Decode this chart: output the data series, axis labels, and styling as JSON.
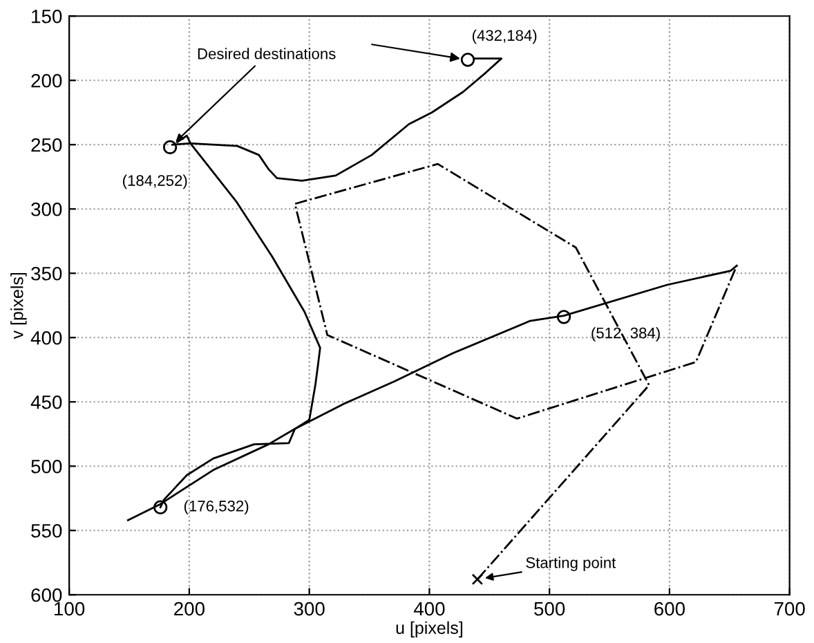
{
  "chart_data": {
    "type": "line",
    "xlabel": "u [pixels]",
    "ylabel": "v [pixels]",
    "xlim": [
      100,
      700
    ],
    "ylim": [
      600,
      150
    ],
    "xticks": [
      100,
      200,
      300,
      400,
      500,
      600,
      700
    ],
    "yticks": [
      150,
      200,
      250,
      300,
      350,
      400,
      450,
      500,
      550,
      600
    ],
    "grid": true,
    "series": [
      {
        "line_style": "dashdot",
        "color": "#000000",
        "x": [
          440,
          583,
          522,
          407,
          288,
          315,
          473,
          622,
          656
        ],
        "values": [
          588,
          437,
          330,
          265,
          296,
          398,
          463,
          419,
          344
        ]
      },
      {
        "line_style": "solid",
        "color": "#000000",
        "x": [
          656,
          651,
          598,
          512,
          484,
          420,
          371,
          330,
          288,
          266,
          220,
          175,
          149
        ],
        "values": [
          344,
          348,
          359,
          383,
          387,
          412,
          434,
          451,
          471,
          483,
          503,
          530,
          542
        ]
      },
      {
        "line_style": "solid",
        "color": "#000000",
        "x": [
          176,
          179,
          198,
          220,
          254,
          283,
          288,
          300,
          305,
          307,
          309,
          296,
          269,
          239,
          201,
          198,
          190
        ],
        "values": [
          532,
          526,
          507,
          494,
          483,
          482,
          471,
          464,
          437,
          423,
          408,
          380,
          337,
          294,
          249,
          243,
          248
        ]
      },
      {
        "line_style": "solid",
        "color": "#000000",
        "x": [
          186,
          201,
          240,
          258,
          266,
          273,
          294,
          322,
          352,
          383,
          402,
          428,
          447,
          460,
          437
        ],
        "values": [
          250,
          249,
          251,
          258,
          269,
          276,
          278,
          274,
          258,
          234,
          225,
          209,
          194,
          183,
          183
        ]
      },
      {
        "type": "scatter",
        "marker": "circle",
        "color": "#000000",
        "x": [
          184,
          432,
          512,
          176
        ],
        "values": [
          252,
          184,
          384,
          532
        ]
      },
      {
        "type": "scatter",
        "marker": "cross",
        "color": "#000000",
        "x": [
          440
        ],
        "values": [
          588
        ]
      }
    ],
    "annotations": [
      {
        "text": "Desired destinations",
        "x": 184,
        "y": 252
      },
      {
        "text": "(184,252)",
        "x": 184,
        "y": 252
      },
      {
        "text": "(432,184)",
        "x": 432,
        "y": 184
      },
      {
        "text": "(512, 384)",
        "x": 512,
        "y": 384
      },
      {
        "text": "(176,532)",
        "x": 176,
        "y": 532
      },
      {
        "text": "Starting point",
        "x": 440,
        "y": 588
      }
    ]
  }
}
